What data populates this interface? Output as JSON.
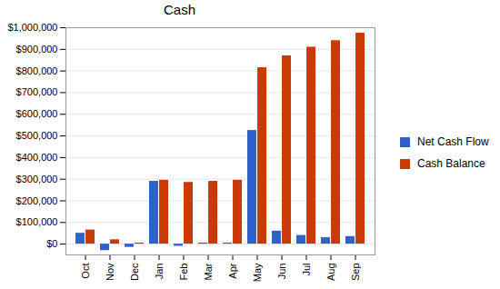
{
  "chart_data": {
    "type": "bar",
    "title": "Cash",
    "categories": [
      "Oct",
      "Nov",
      "Dec",
      "Jan",
      "Feb",
      "Mar",
      "Apr",
      "May",
      "Jun",
      "Jul",
      "Aug",
      "Sep"
    ],
    "series": [
      {
        "name": "Net Cash Flow",
        "color": "#2f62c8",
        "values": [
          50000,
          -30000,
          -15000,
          290000,
          -10000,
          5000,
          5000,
          525000,
          60000,
          40000,
          30000,
          35000
        ]
      },
      {
        "name": "Cash Balance",
        "color": "#c93a06",
        "values": [
          65000,
          20000,
          5000,
          295000,
          285000,
          290000,
          295000,
          815000,
          870000,
          910000,
          940000,
          975000
        ]
      }
    ],
    "ylim": [
      -50000,
      1000000
    ],
    "yticks": [
      {
        "value": 0,
        "label": "$0"
      },
      {
        "value": 100000,
        "label": "$100,000"
      },
      {
        "value": 200000,
        "label": "$200,000"
      },
      {
        "value": 300000,
        "label": "$300,000"
      },
      {
        "value": 400000,
        "label": "$400,000"
      },
      {
        "value": 500000,
        "label": "$500,000"
      },
      {
        "value": 600000,
        "label": "$600,000"
      },
      {
        "value": 700000,
        "label": "$700,000"
      },
      {
        "value": 800000,
        "label": "$800,000"
      },
      {
        "value": 900000,
        "label": "$900,000"
      },
      {
        "value": 1000000,
        "label": "$1,000,000"
      }
    ],
    "grid": true,
    "legend": "right"
  }
}
